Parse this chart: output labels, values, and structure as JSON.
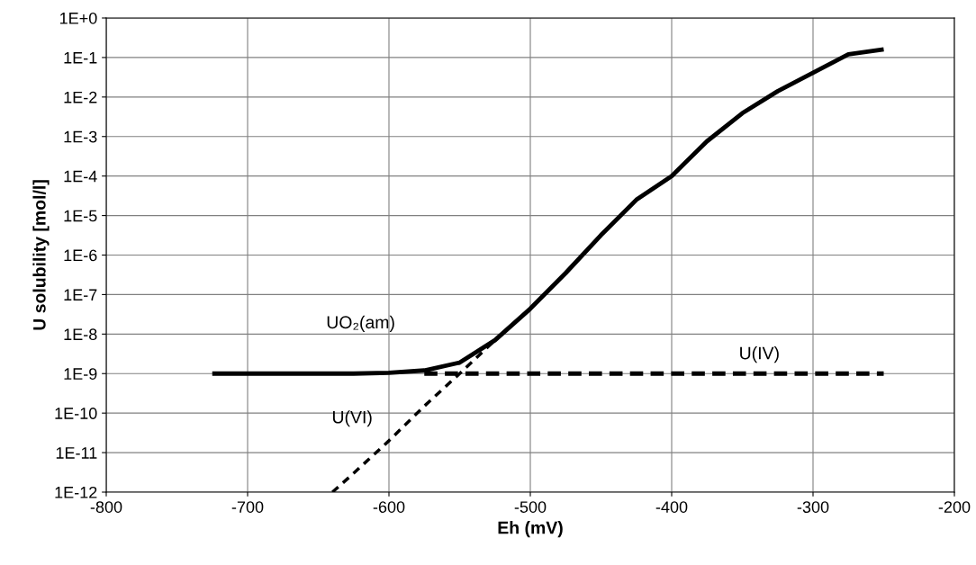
{
  "chart_data": {
    "type": "line",
    "xlabel": "Eh (mV)",
    "ylabel": "U solubility [mol/l]",
    "log": "y",
    "grid": true,
    "legend": false,
    "marker": "none",
    "xlim": [
      -800,
      -200
    ],
    "xticks": [
      -800,
      -700,
      -600,
      -500,
      -400,
      -300,
      -200
    ],
    "ylim": [
      1e-12,
      1
    ],
    "yticks": [
      {
        "value": 1e-12,
        "label": "1E-12"
      },
      {
        "value": 1e-11,
        "label": "1E-11"
      },
      {
        "value": 1e-10,
        "label": "1E-10"
      },
      {
        "value": 1e-09,
        "label": "1E-9"
      },
      {
        "value": 1e-08,
        "label": "1E-8"
      },
      {
        "value": 1e-07,
        "label": "1E-7"
      },
      {
        "value": 1e-06,
        "label": "1E-6"
      },
      {
        "value": 1e-05,
        "label": "1E-5"
      },
      {
        "value": 0.0001,
        "label": "1E-4"
      },
      {
        "value": 0.001,
        "label": "1E-3"
      },
      {
        "value": 0.01,
        "label": "1E-2"
      },
      {
        "value": 0.1,
        "label": "1E-1"
      },
      {
        "value": 1,
        "label": "1E+0"
      }
    ],
    "series": [
      {
        "color": "#000000",
        "line_style": "solid",
        "x": [
          -725,
          -700,
          -675,
          -650,
          -625,
          -600,
          -575,
          -550,
          -525,
          -500,
          -475,
          -450,
          -425,
          -400,
          -375,
          -350,
          -325,
          -300,
          -275,
          -250
        ],
        "values": [
          1e-09,
          1e-09,
          1e-09,
          1e-09,
          1e-09,
          1.05e-09,
          1.2e-09,
          1.9e-09,
          7e-09,
          4.4e-08,
          3.5e-07,
          3.2e-06,
          2.5e-05,
          0.0001,
          0.00076,
          0.0039,
          0.014,
          0.041,
          0.12,
          0.16
        ]
      },
      {
        "color": "#000000",
        "line_style": "dashed",
        "x": [
          -575,
          -250
        ],
        "values": [
          1e-09,
          1e-09
        ]
      },
      {
        "color": "#000000",
        "line_style": "dotted",
        "x": [
          -640,
          -625,
          -600,
          -575,
          -550,
          -525
        ],
        "values": [
          1e-12,
          3e-12,
          2e-11,
          1.5e-10,
          1e-09,
          7e-09
        ]
      }
    ],
    "annotations": [
      "UO₂(am)",
      "U(IV)",
      "U(VI)"
    ]
  }
}
